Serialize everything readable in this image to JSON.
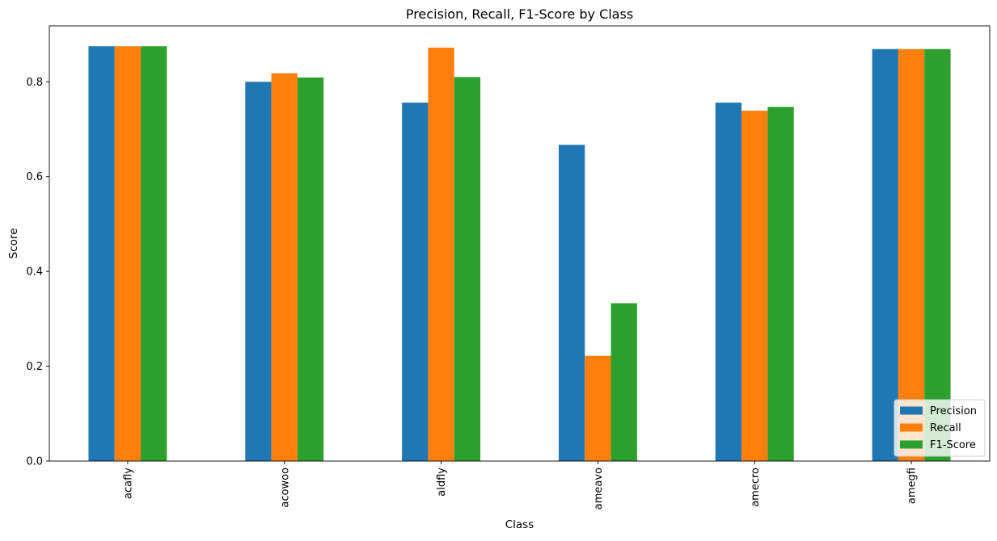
{
  "chart_data": {
    "type": "bar",
    "title": "Precision, Recall, F1-Score by Class",
    "xlabel": "Class",
    "ylabel": "Score",
    "categories": [
      "acafly",
      "acowoo",
      "aldfly",
      "ameavo",
      "amecro",
      "amegfi"
    ],
    "series": [
      {
        "name": "Precision",
        "color": "#1f77b4",
        "values": [
          0.875,
          0.8,
          0.756,
          0.667,
          0.756,
          0.869
        ]
      },
      {
        "name": "Recall",
        "color": "#ff7f0e",
        "values": [
          0.875,
          0.818,
          0.872,
          0.222,
          0.739,
          0.869
        ]
      },
      {
        "name": "F1-Score",
        "color": "#2ca02c",
        "values": [
          0.875,
          0.809,
          0.81,
          0.333,
          0.747,
          0.869
        ]
      }
    ],
    "ylim": [
      0,
      0.918
    ],
    "yticks": [
      0.0,
      0.2,
      0.4,
      0.6,
      0.8
    ],
    "ytick_labels": [
      "0.0",
      "0.2",
      "0.4",
      "0.6",
      "0.8"
    ],
    "grid": false,
    "legend_position": "lower right"
  }
}
